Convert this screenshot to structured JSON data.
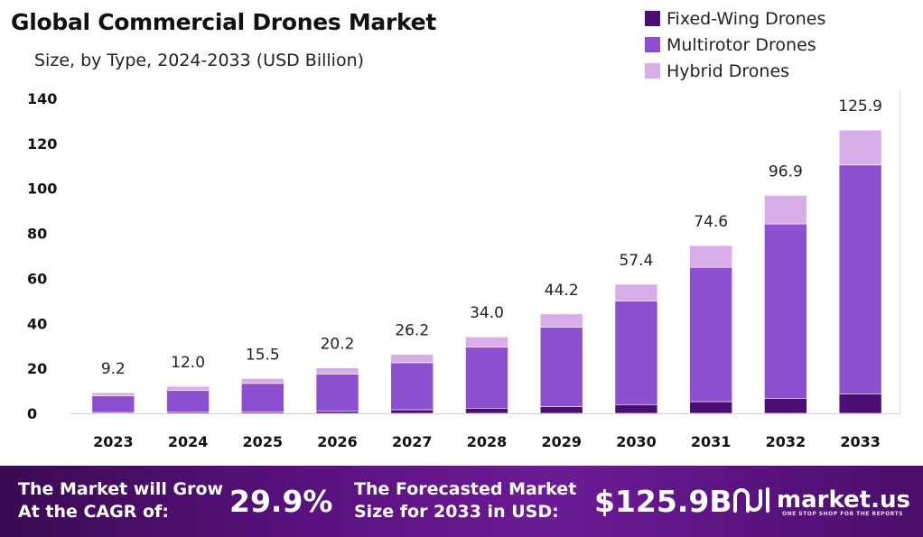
{
  "chart_data": {
    "type": "bar",
    "stacked": true,
    "title": "Global Commercial Drones Market",
    "subtitle": "Size, by Type, 2024-2033 (USD Billion)",
    "categories": [
      "2023",
      "2024",
      "2025",
      "2026",
      "2027",
      "2028",
      "2029",
      "2030",
      "2031",
      "2032",
      "2033"
    ],
    "series": [
      {
        "name": "Fixed-Wing Drones",
        "color": "#4b0f73",
        "values": [
          0.4,
          0.5,
          0.6,
          0.9,
          1.6,
          2.3,
          3.0,
          3.9,
          5.2,
          6.7,
          8.7
        ]
      },
      {
        "name": "Multirotor Drones",
        "color": "#8c4fcf",
        "values": [
          7.4,
          9.7,
          12.7,
          16.5,
          20.9,
          27.1,
          35.3,
          46.0,
          59.7,
          77.5,
          101.7
        ]
      },
      {
        "name": "Hybrid Drones",
        "color": "#d8aeea",
        "values": [
          1.4,
          1.8,
          2.2,
          2.8,
          3.7,
          4.6,
          5.9,
          7.5,
          9.7,
          12.7,
          15.5
        ]
      }
    ],
    "totals": [
      "9.2",
      "12.0",
      "15.5",
      "20.2",
      "26.2",
      "34.0",
      "44.2",
      "57.4",
      "74.6",
      "96.9",
      "125.9"
    ],
    "y_ticks": [
      "0",
      "20",
      "40",
      "60",
      "80",
      "100",
      "120",
      "140"
    ],
    "ylim": [
      0,
      140
    ],
    "grid": false,
    "legend_position": "top-right"
  },
  "footer": {
    "cagr_label_line1": "The Market will Grow",
    "cagr_label_line2": "At the CAGR of:",
    "cagr_value": "29.9%",
    "forecast_label_line1": "The Forecasted Market",
    "forecast_label_line2": "Size for 2033 in USD:",
    "forecast_value": "$125.9B",
    "brand_name": "market.us",
    "brand_tagline": "ONE STOP SHOP FOR THE REPORTS"
  }
}
